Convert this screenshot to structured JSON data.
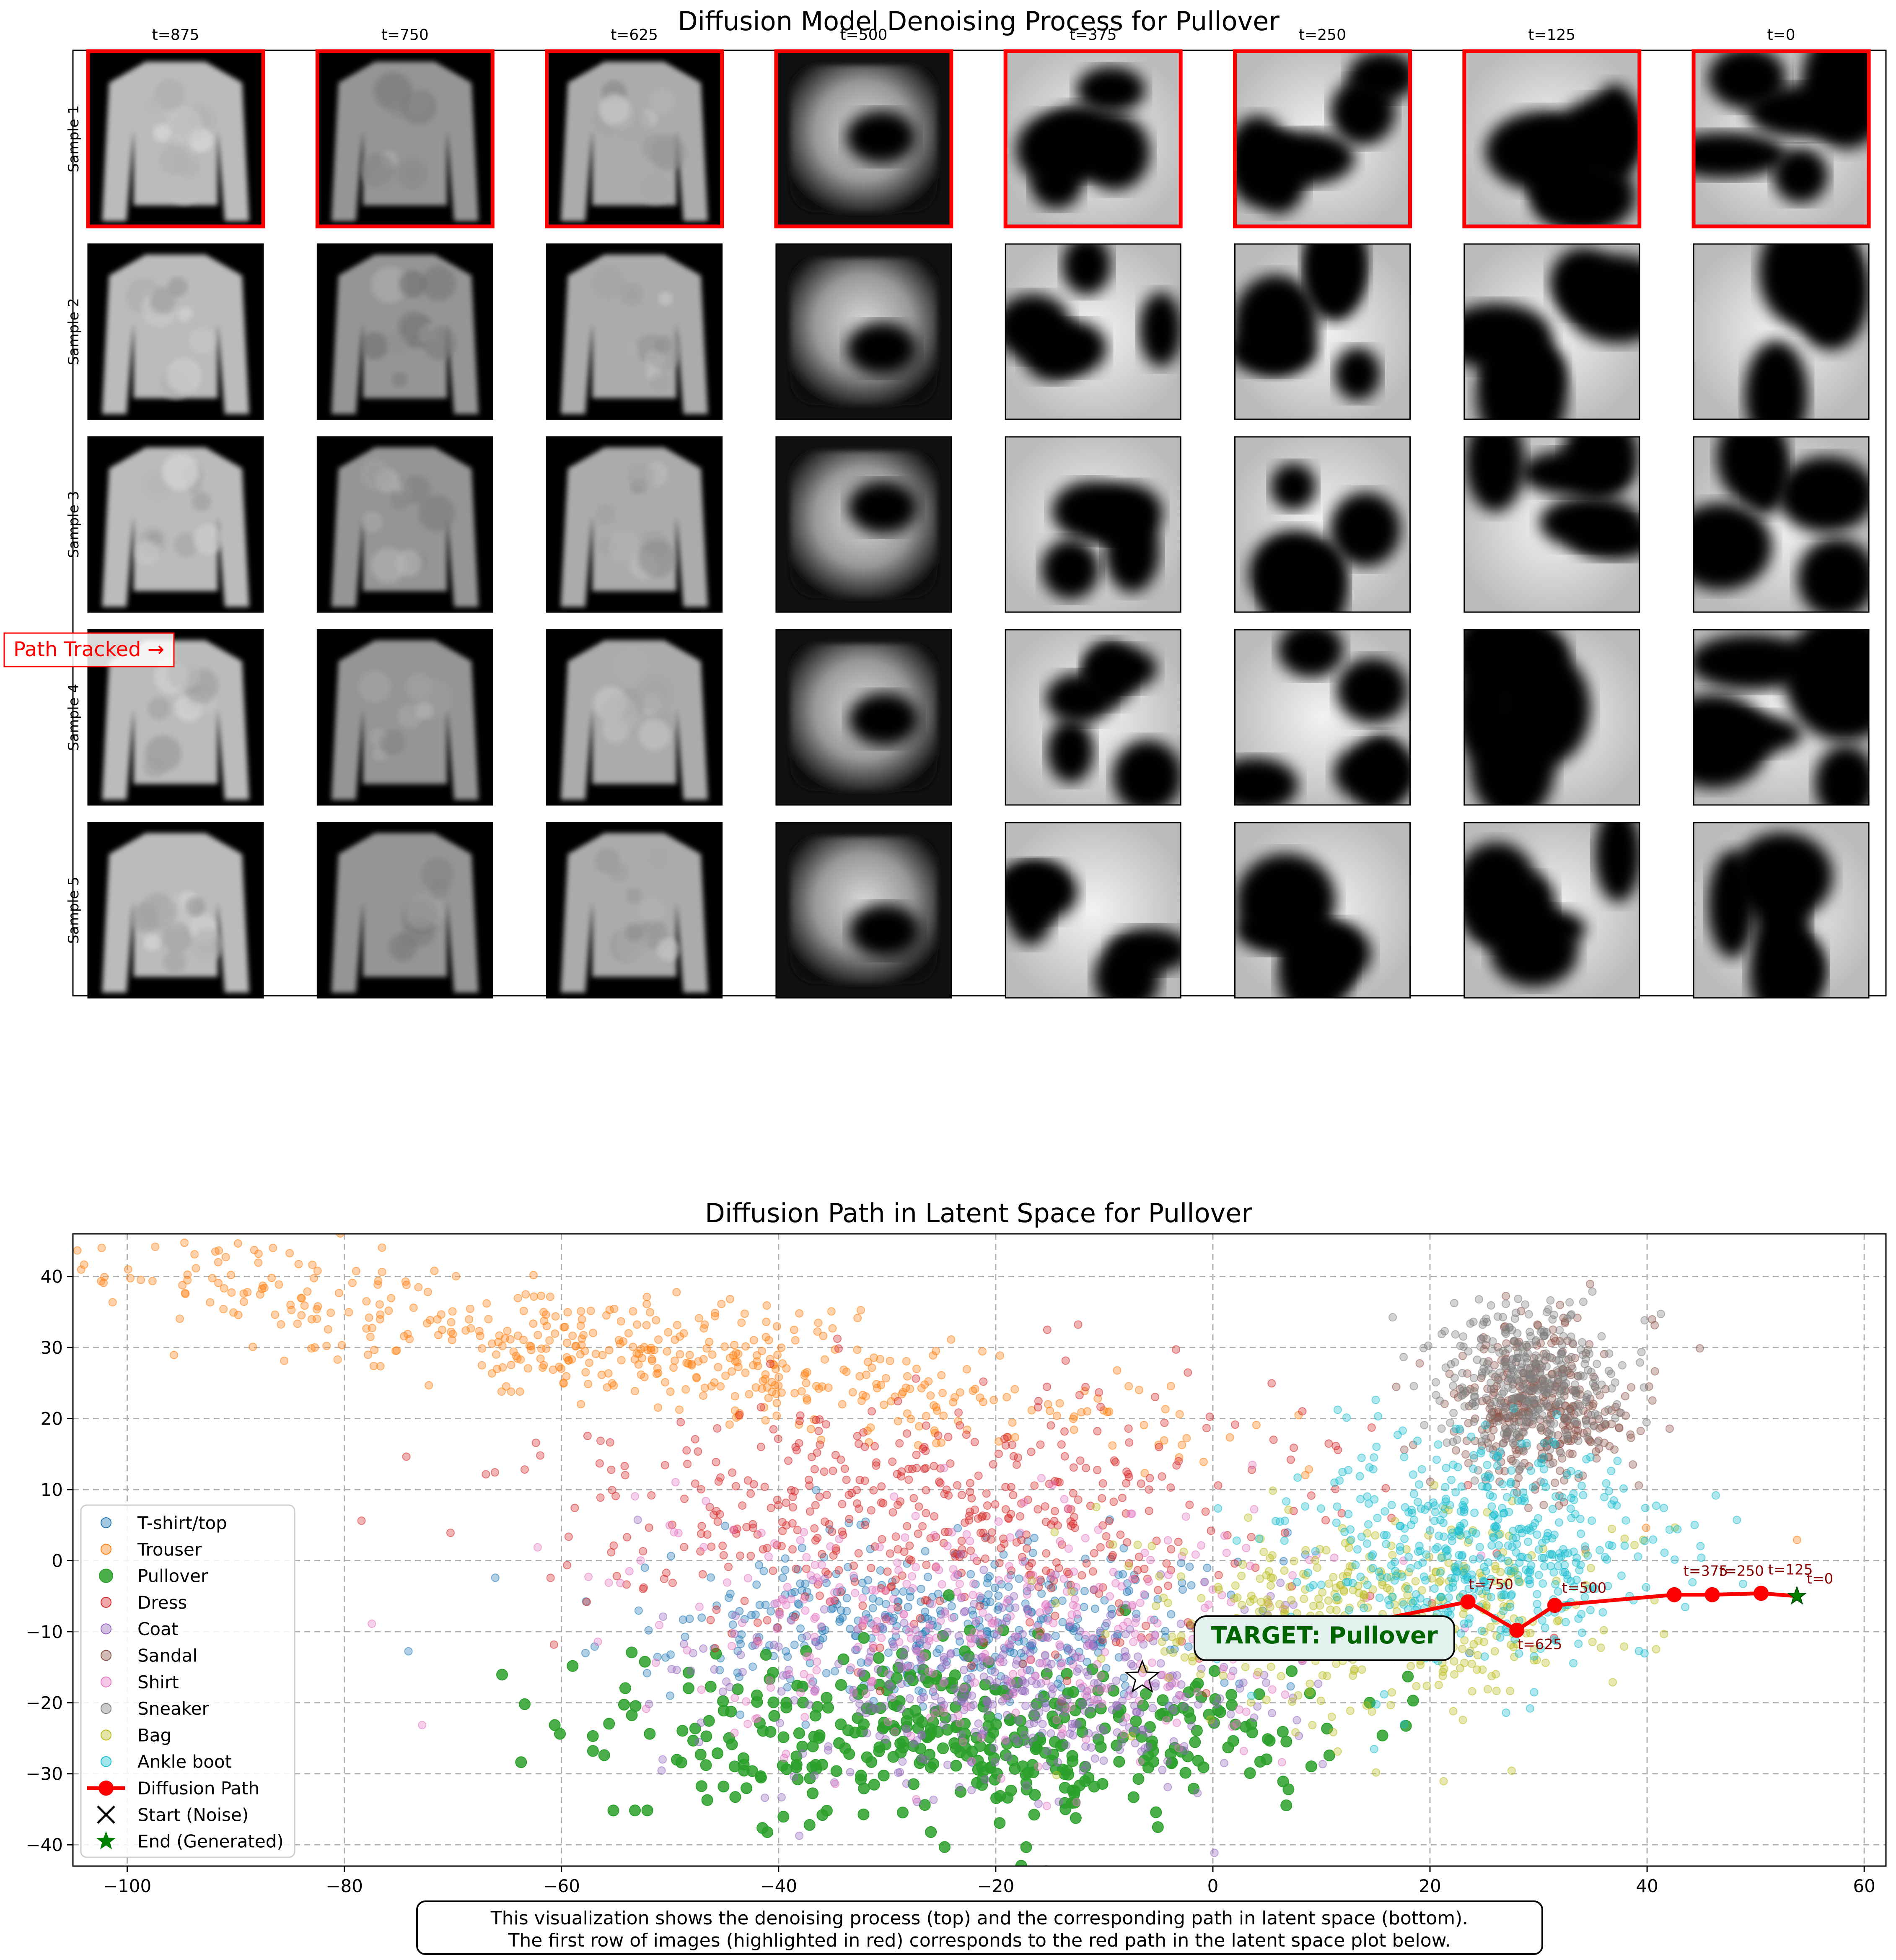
{
  "figure": {
    "top_title": "Diffusion Model Denoising Process for Pullover",
    "bottom_title": "Diffusion Path in Latent Space for Pullover",
    "path_tracked_label": "Path Tracked →",
    "caption_lines": [
      "This visualization shows the denoising process (top) and the corresponding path in latent space (bottom).",
      "The first row of images (highlighted in red) corresponds to the red path in the latent space plot below."
    ],
    "target_label": "TARGET: Pullover",
    "colors": {
      "highlight": "#ff0000",
      "path": "#ff0000",
      "path_label": "#8b0000",
      "target_text": "#006400",
      "target_box": "#e0f0ee"
    }
  },
  "grid": {
    "timesteps": [
      "t=875",
      "t=750",
      "t=625",
      "t=500",
      "t=375",
      "t=250",
      "t=125",
      "t=0"
    ],
    "samples": [
      "Sample 1",
      "Sample 2",
      "Sample 3",
      "Sample 4",
      "Sample 5"
    ],
    "highlighted_row": 0
  },
  "chart_data": {
    "type": "scatter",
    "title": "Diffusion Path in Latent Space for Pullover",
    "xlabel": "",
    "ylabel": "",
    "xlim": [
      -105,
      62
    ],
    "ylim": [
      -43,
      46
    ],
    "xticks": [
      -100,
      -80,
      -60,
      -40,
      -20,
      0,
      20,
      40,
      60
    ],
    "yticks": [
      -40,
      -30,
      -20,
      -10,
      0,
      10,
      20,
      30,
      40
    ],
    "grid": true,
    "legend_position": "lower-left",
    "series": [
      {
        "name": "T-shirt/top",
        "color": "#1f77b4",
        "center": [
          -25,
          -9
        ],
        "spread": [
          14,
          6
        ],
        "n": 420,
        "emphasized": false
      },
      {
        "name": "Trouser",
        "color": "#ff7f0e",
        "center": [
          -55,
          28
        ],
        "spread": [
          28,
          6
        ],
        "n": 520,
        "emphasized": false
      },
      {
        "name": "Pullover",
        "color": "#2ca02c",
        "center": [
          -22,
          -24
        ],
        "spread": [
          16,
          6
        ],
        "n": 420,
        "emphasized": true
      },
      {
        "name": "Dress",
        "color": "#d62728",
        "center": [
          -25,
          6
        ],
        "spread": [
          16,
          9
        ],
        "n": 520,
        "emphasized": false
      },
      {
        "name": "Coat",
        "color": "#9467bd",
        "center": [
          -18,
          -18
        ],
        "spread": [
          13,
          7
        ],
        "n": 420,
        "emphasized": false
      },
      {
        "name": "Sandal",
        "color": "#8c564b",
        "center": [
          30,
          22
        ],
        "spread": [
          4,
          6
        ],
        "n": 380,
        "emphasized": false
      },
      {
        "name": "Shirt",
        "color": "#e377c2",
        "center": [
          -22,
          -10
        ],
        "spread": [
          16,
          9
        ],
        "n": 380,
        "emphasized": false
      },
      {
        "name": "Sneaker",
        "color": "#7f7f7f",
        "center": [
          29,
          25
        ],
        "spread": [
          4,
          5
        ],
        "n": 380,
        "emphasized": false
      },
      {
        "name": "Bag",
        "color": "#bcbd22",
        "center": [
          15,
          -8
        ],
        "spread": [
          12,
          7
        ],
        "n": 420,
        "emphasized": false
      },
      {
        "name": "Ankle boot",
        "color": "#17becf",
        "center": [
          25,
          2
        ],
        "spread": [
          8,
          8
        ],
        "n": 520,
        "emphasized": false
      }
    ],
    "diffusion_path": {
      "name": "Diffusion Path",
      "points": [
        {
          "t": "t=875",
          "x": 0,
          "y": -13
        },
        {
          "t": "t=750",
          "x": 23.5,
          "y": -5.8
        },
        {
          "t": "t=625",
          "x": 28,
          "y": -9.8
        },
        {
          "t": "t=500",
          "x": 31.5,
          "y": -6.3
        },
        {
          "t": "t=375",
          "x": 42.5,
          "y": -4.8
        },
        {
          "t": "t=250",
          "x": 46,
          "y": -4.8
        },
        {
          "t": "t=125",
          "x": 50.5,
          "y": -4.6
        },
        {
          "t": "t=0",
          "x": 53.8,
          "y": -5.0
        }
      ]
    },
    "start": {
      "name": "Start (Noise)",
      "x": 0,
      "y": -13
    },
    "end": {
      "name": "End (Generated)",
      "x": 53.8,
      "y": -5.0
    },
    "target_star": {
      "x": -6.5,
      "y": -16.5
    },
    "legend": [
      "T-shirt/top",
      "Trouser",
      "Pullover",
      "Dress",
      "Coat",
      "Sandal",
      "Shirt",
      "Sneaker",
      "Bag",
      "Ankle boot",
      "Diffusion Path",
      "Start (Noise)",
      "End (Generated)"
    ]
  }
}
